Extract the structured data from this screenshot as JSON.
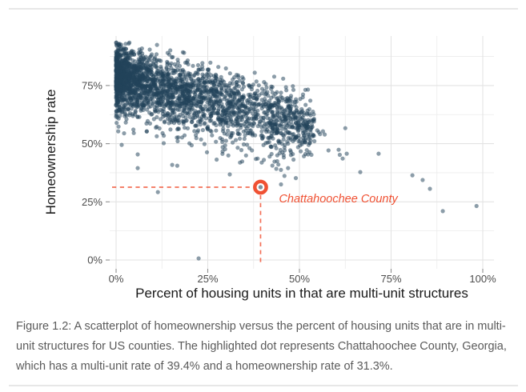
{
  "page": {
    "background": "#ffffff",
    "divider_color": "#e7e7e7"
  },
  "chart_data": {
    "type": "scatter",
    "title": "",
    "xlabel": "Percent of housing units in that are multi-unit structures",
    "ylabel": "Homeownership rate",
    "xlim": [
      0,
      100
    ],
    "ylim": [
      0,
      93
    ],
    "grid": "on",
    "x_tick_values": [
      0,
      25,
      50,
      75,
      100
    ],
    "x_tick_labels": [
      "0%",
      "25%",
      "50%",
      "75%",
      "100%"
    ],
    "x_minor_tick_values": [
      12.5,
      37.5,
      62.5,
      87.5
    ],
    "y_tick_values": [
      0,
      25,
      50,
      75
    ],
    "y_tick_labels": [
      "0%",
      "25%",
      "50%",
      "75%"
    ],
    "y_minor_tick_values": [
      12.5,
      37.5,
      62.5,
      87.5
    ],
    "highlight_point": {
      "label": "Chattahoochee County",
      "x": 39.4,
      "y": 31.3,
      "color": "#f05133"
    },
    "points_description": "Each dot is one US county (~3000 counties); dense negatively-sloped cloud from (0%,60-93%) down to (55%,45-65%) with sparse tail to 100%",
    "cloud": {
      "seed": 987654321,
      "components": [
        {
          "n": 2500,
          "xmin": 0,
          "xmax": 54,
          "pow": 1.9,
          "yBase": 79.5,
          "ySlope": 0.42,
          "ySd": 6.4,
          "lowTail": false
        },
        {
          "n": 130,
          "xmin": 0,
          "xmax": 50,
          "pow": 1.5,
          "yBase": 71.0,
          "ySlope": 0.5,
          "ySd": 8.0,
          "lowTail": true
        },
        {
          "n": 26,
          "xmin": 40,
          "xmax": 64,
          "pow": 1.0,
          "yBase": 68.0,
          "ySlope": 0.25,
          "ySd": 5.5,
          "lowTail": false
        }
      ]
    },
    "outlier_points": [
      [
        98.3,
        23.2
      ],
      [
        89.1,
        21.0
      ],
      [
        85.6,
        30.6
      ],
      [
        83.6,
        34.4
      ],
      [
        80.8,
        36.4
      ],
      [
        71.6,
        45.7
      ],
      [
        66.6,
        37.8
      ],
      [
        62.9,
        45.7
      ],
      [
        61.8,
        43.6
      ],
      [
        60.7,
        47.4
      ],
      [
        52.0,
        56.7
      ],
      [
        46.9,
        39.5
      ],
      [
        43.7,
        39.2
      ],
      [
        43.2,
        42.3
      ],
      [
        38.6,
        43.6
      ],
      [
        33.8,
        41.9
      ],
      [
        31.0,
        36.8
      ],
      [
        22.5,
        0.7
      ],
      [
        15.3,
        40.9
      ],
      [
        11.4,
        29.2
      ],
      [
        5.9,
        39.5
      ],
      [
        5.9,
        45.4
      ],
      [
        18.2,
        89.3
      ]
    ],
    "colors": {
      "point": "#22445a",
      "point_opacity": 0.52,
      "grid_major": "#e3e3e3",
      "grid_minor": "#ececec",
      "axis_tick_mark": "#8f8f8f",
      "axis_tick_text": "#4d4d4d",
      "axis_title_text": "#1a1a1a",
      "accent": "#f05133"
    }
  },
  "caption": {
    "text": "Figure 1.2: A scatterplot of homeownership versus the percent of housing units that are in multi-unit structures for US counties. The highlighted dot represents Chattahoochee County, Georgia, which has a multi-unit rate of 39.4% and a homeownership rate of 31.3%."
  }
}
